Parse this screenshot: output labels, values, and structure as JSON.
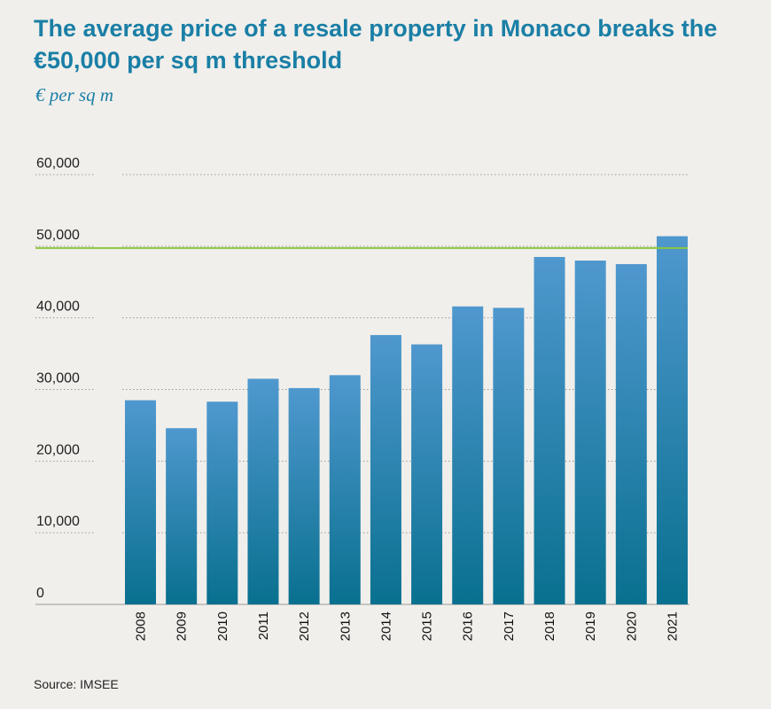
{
  "header": {
    "title": "The average price of a resale property in Monaco breaks the €50,000 per sq m threshold",
    "subtitle": "€ per sq m"
  },
  "footer": {
    "source": "Source: IMSEE"
  },
  "colors": {
    "bar_top": "#4f98cf",
    "bar_bottom": "#09708f",
    "threshold": "#8cc63f",
    "grid": "#9a9a9a",
    "title": "#1a7fa6"
  },
  "chart_data": {
    "type": "bar",
    "categories": [
      "2008",
      "2009",
      "2010",
      "2011",
      "2012",
      "2013",
      "2014",
      "2015",
      "2016",
      "2017",
      "2018",
      "2019",
      "2020",
      "2021"
    ],
    "values": [
      28500,
      24600,
      28300,
      31500,
      30200,
      32000,
      37600,
      36300,
      41600,
      41400,
      48500,
      48000,
      47500,
      51400
    ],
    "ylim": [
      0,
      60000
    ],
    "yticks": [
      0,
      10000,
      20000,
      30000,
      40000,
      50000,
      60000
    ],
    "ytick_labels": [
      "0",
      "10,000",
      "20,000",
      "30,000",
      "40,000",
      "50,000",
      "60,000"
    ],
    "reference_line": 50000,
    "grid": true,
    "title": "",
    "xlabel": "",
    "ylabel": ""
  }
}
